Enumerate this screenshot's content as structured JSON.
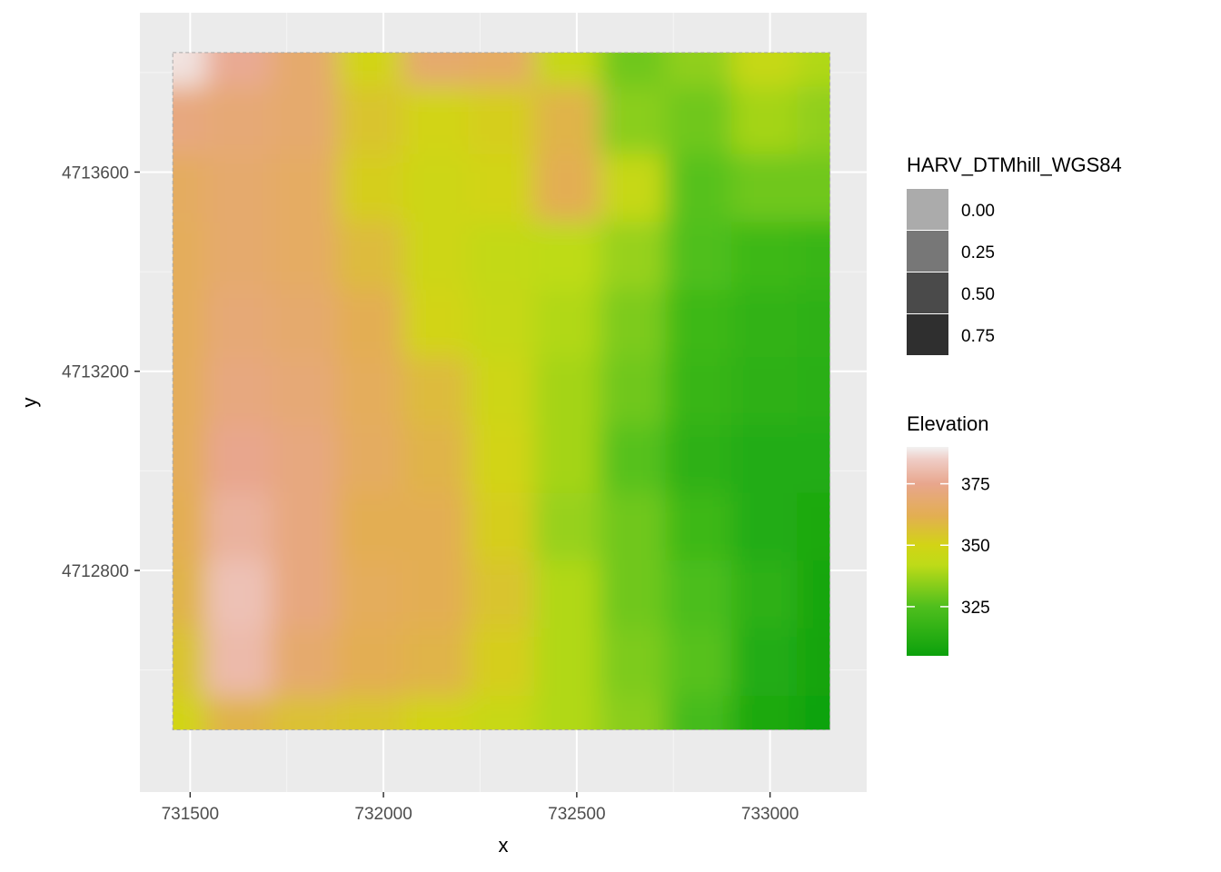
{
  "chart_data": {
    "type": "heatmap",
    "title": "",
    "xlabel": "x",
    "ylabel": "y",
    "xlim": [
      731370,
      733250
    ],
    "ylim": [
      4712355,
      4713920
    ],
    "raster_extent": {
      "x": [
        731455,
        733155
      ],
      "y": [
        4712480,
        4713840
      ]
    },
    "x_ticks": [
      731500,
      732000,
      732500,
      733000
    ],
    "x_tick_labels": [
      "731500",
      "732000",
      "732500",
      "733000"
    ],
    "y_ticks": [
      4712800,
      4713200,
      4713600
    ],
    "y_tick_labels": [
      "4712800",
      "4713200",
      "4713600"
    ],
    "grid": true,
    "legend_position": "right",
    "legends": [
      {
        "title": "HARV_DTMhill_WGS84",
        "kind": "discrete-alpha",
        "entries": [
          {
            "label": "0.00",
            "color": "#ababab"
          },
          {
            "label": "0.25",
            "color": "#777777"
          },
          {
            "label": "0.50",
            "color": "#4a4a4a"
          },
          {
            "label": "0.75",
            "color": "#2f2f2f"
          }
        ]
      },
      {
        "title": "Elevation",
        "kind": "continuous",
        "range": [
          305,
          390
        ],
        "breaks": [
          375,
          350,
          325
        ],
        "break_labels": [
          "375",
          "350",
          "325"
        ],
        "stops": [
          {
            "value": 305,
            "color": "#0ca10c"
          },
          {
            "value": 325,
            "color": "#4fbf1d"
          },
          {
            "value": 342,
            "color": "#bedb18"
          },
          {
            "value": 350,
            "color": "#d2d415"
          },
          {
            "value": 362,
            "color": "#e3ae52"
          },
          {
            "value": 375,
            "color": "#e8a68d"
          },
          {
            "value": 385,
            "color": "#efcdc6"
          },
          {
            "value": 390,
            "color": "#f2f2f2"
          }
        ]
      }
    ],
    "elevation_grid": {
      "columns_x": [
        731455,
        731625,
        731795,
        731965,
        732135,
        732305,
        732475,
        732645,
        732815,
        732985,
        733155
      ],
      "rows_y": [
        4713840,
        4713704,
        4713568,
        4713432,
        4713296,
        4713160,
        4713024,
        4712888,
        4712752,
        4712616,
        4712480
      ],
      "values": [
        [
          388,
          376,
          368,
          350,
          368,
          366,
          345,
          330,
          335,
          345,
          340
        ],
        [
          372,
          370,
          368,
          355,
          350,
          352,
          360,
          334,
          330,
          338,
          335
        ],
        [
          365,
          368,
          366,
          352,
          348,
          350,
          362,
          345,
          326,
          330,
          330
        ],
        [
          364,
          368,
          366,
          358,
          348,
          344,
          342,
          336,
          325,
          320,
          318
        ],
        [
          364,
          370,
          368,
          362,
          350,
          345,
          340,
          332,
          320,
          316,
          315
        ],
        [
          364,
          372,
          370,
          364,
          358,
          348,
          338,
          330,
          318,
          315,
          314
        ],
        [
          364,
          375,
          372,
          365,
          360,
          350,
          338,
          326,
          315,
          312,
          312
        ],
        [
          362,
          378,
          372,
          362,
          362,
          352,
          336,
          330,
          320,
          312,
          310
        ],
        [
          360,
          382,
          372,
          364,
          362,
          355,
          340,
          330,
          324,
          315,
          308
        ],
        [
          355,
          380,
          368,
          362,
          360,
          352,
          340,
          332,
          326,
          312,
          307
        ],
        [
          350,
          360,
          356,
          354,
          350,
          346,
          340,
          334,
          322,
          310,
          306
        ]
      ]
    }
  }
}
